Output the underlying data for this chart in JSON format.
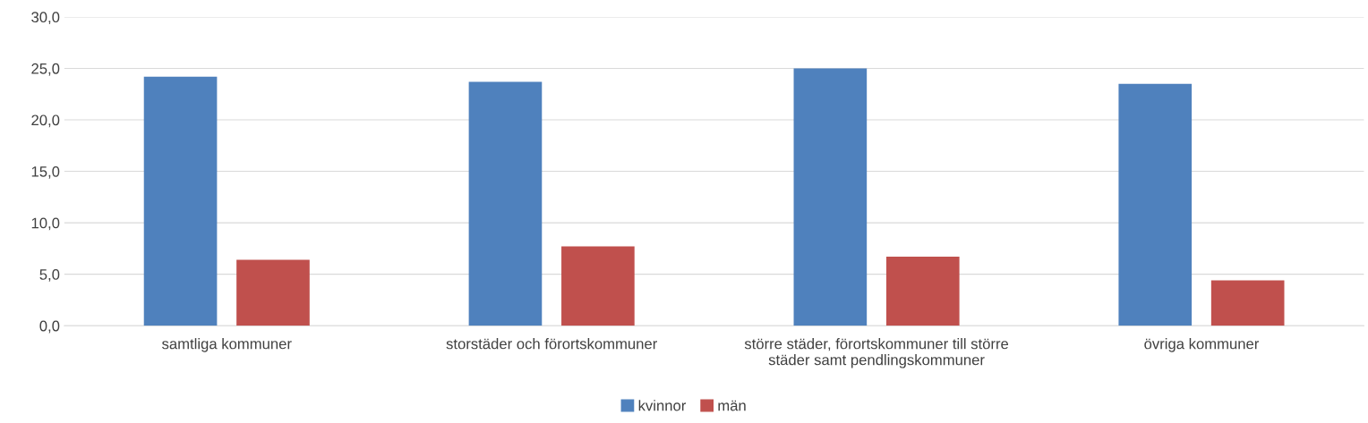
{
  "chart_data": {
    "type": "bar",
    "categories": [
      "samtliga kommuner",
      "storstäder och förortskommuner",
      "större städer, förortskommuner till större\nstäder samt pendlingskommuner",
      "övriga kommuner"
    ],
    "series": [
      {
        "name": "kvinnor",
        "color": "#4f81bd",
        "values": [
          24.2,
          23.7,
          25.0,
          23.5
        ]
      },
      {
        "name": "män",
        "color": "#c0504d",
        "values": [
          6.4,
          7.7,
          6.7,
          4.4
        ]
      }
    ],
    "ylim": [
      0,
      30
    ],
    "yticks": [
      {
        "value": 0,
        "label": "0,0"
      },
      {
        "value": 5,
        "label": "5,0"
      },
      {
        "value": 10,
        "label": "10,0"
      },
      {
        "value": 15,
        "label": "15,0"
      },
      {
        "value": 20,
        "label": "20,0"
      },
      {
        "value": 25,
        "label": "25,0"
      },
      {
        "value": 30,
        "label": "30,0"
      }
    ],
    "grid": "y",
    "legend": "bottom"
  }
}
